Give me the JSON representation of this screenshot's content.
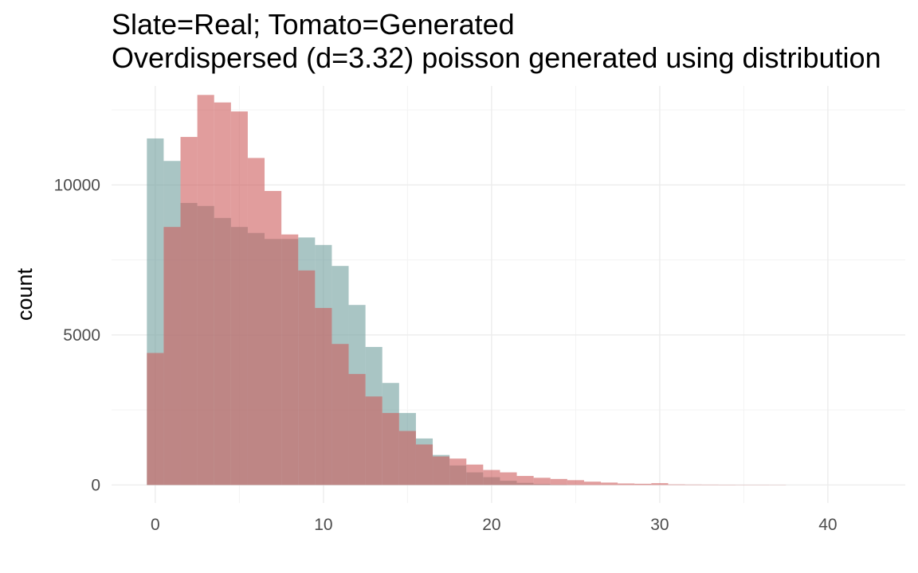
{
  "chart_data": {
    "type": "bar",
    "title": "Slate=Real; Tomato=Generated",
    "subtitle": "Overdispersed (d=3.32) poisson generated using distribution",
    "xlabel": "",
    "ylabel": "count",
    "xlim": [
      -2.6,
      44.6
    ],
    "ylim": [
      -600,
      13300
    ],
    "x_ticks": [
      0,
      10,
      20,
      30,
      40
    ],
    "y_ticks": [
      0,
      5000,
      10000
    ],
    "grid": true,
    "legend": "none",
    "bin_width": 1,
    "bin_start": -0.5,
    "series": [
      {
        "color": "#6f9e9d",
        "values": [
          11550,
          10800,
          9400,
          9300,
          8900,
          8600,
          8400,
          8200,
          8200,
          8250,
          8000,
          7300,
          6000,
          4600,
          3400,
          2400,
          1550,
          1000,
          650,
          420,
          260,
          140,
          70,
          30,
          12,
          5,
          2,
          1
        ]
      },
      {
        "color": "#cd5c5c",
        "values": [
          4400,
          8600,
          11600,
          13000,
          12750,
          12450,
          10900,
          9800,
          8350,
          7150,
          5900,
          4700,
          3700,
          2950,
          2400,
          1800,
          1350,
          950,
          880,
          680,
          500,
          420,
          300,
          240,
          200,
          160,
          110,
          80,
          50,
          40,
          60,
          20,
          15,
          12,
          10,
          8,
          8,
          6,
          0,
          0,
          0,
          0,
          0
        ]
      }
    ]
  }
}
